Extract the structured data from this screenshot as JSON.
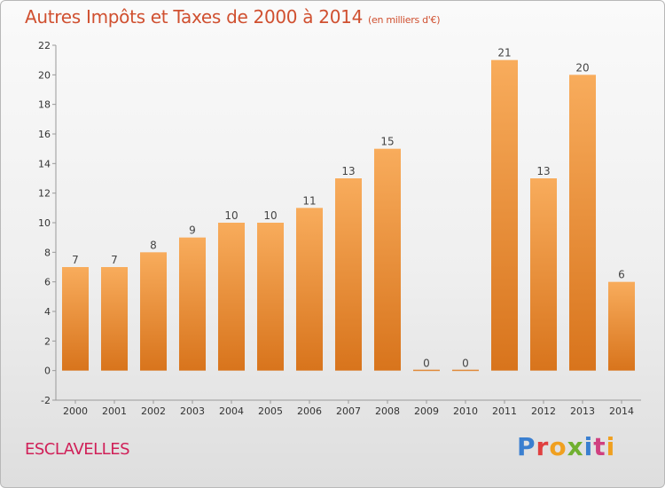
{
  "title": "Autres Impôts et Taxes de 2000 à 2014",
  "subtitle": "(en milliers d'€)",
  "commune": "ESCLAVELLES",
  "brand": {
    "text": "Proxiti",
    "colors": [
      "#3a7fd0",
      "#e04040",
      "#f0a020",
      "#70b030",
      "#3a7fd0",
      "#d04080",
      "#f0a020"
    ]
  },
  "colors": {
    "bar_light": "#f8ac5c",
    "bar_dark": "#d8741c",
    "title": "#d05030",
    "commune": "#d02058"
  },
  "chart_data": {
    "type": "bar",
    "categories": [
      "2000",
      "2001",
      "2002",
      "2003",
      "2004",
      "2005",
      "2006",
      "2007",
      "2008",
      "2009",
      "2010",
      "2011",
      "2012",
      "2013",
      "2014"
    ],
    "values": [
      7,
      7,
      8,
      9,
      10,
      10,
      11,
      13,
      15,
      0,
      0,
      21,
      13,
      20,
      6
    ],
    "data_labels": [
      "7",
      "7",
      "8",
      "9",
      "10",
      "10",
      "11",
      "13",
      "15",
      "0",
      "0",
      "21",
      "13",
      "20",
      "6"
    ],
    "title": "Autres Impôts et Taxes de 2000 à 2014",
    "xlabel": "",
    "ylabel": "",
    "ylim": [
      -2,
      22
    ],
    "yticks": [
      -2,
      0,
      2,
      4,
      6,
      8,
      10,
      12,
      14,
      16,
      18,
      20,
      22
    ],
    "grid": false,
    "legend": "none"
  }
}
